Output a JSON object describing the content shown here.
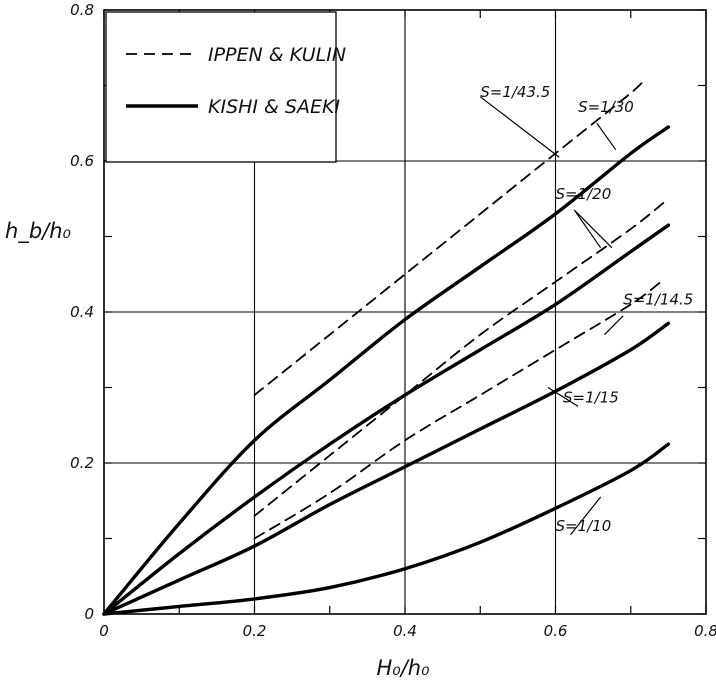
{
  "chart_data": {
    "type": "line",
    "title": "",
    "xlabel": "H₀/h₀",
    "ylabel": "h_b/h₀",
    "xlim": [
      0,
      0.8
    ],
    "ylim": [
      0,
      0.8
    ],
    "xticks": [
      "0",
      "0.2",
      "0.4",
      "0.6",
      "0.8"
    ],
    "yticks": [
      "0",
      "0.2",
      "0.4",
      "0.6",
      "0.8"
    ],
    "grid": true,
    "legend": {
      "position": "top-left",
      "entries": [
        {
          "label": "IPPEN & KULIN",
          "style": "dashed"
        },
        {
          "label": "KISHI & SAEKI",
          "style": "solid"
        }
      ]
    },
    "series": [
      {
        "source": "IPPEN & KULIN",
        "slope": "S=1/43.5",
        "style": "dashed",
        "x": [
          0.2,
          0.3,
          0.4,
          0.5,
          0.6,
          0.7,
          0.72
        ],
        "y": [
          0.29,
          0.37,
          0.45,
          0.53,
          0.61,
          0.69,
          0.71
        ]
      },
      {
        "source": "IPPEN & KULIN",
        "slope": "S=1/20",
        "style": "dashed",
        "x": [
          0.2,
          0.3,
          0.4,
          0.5,
          0.6,
          0.7,
          0.75
        ],
        "y": [
          0.13,
          0.21,
          0.29,
          0.37,
          0.44,
          0.51,
          0.55
        ]
      },
      {
        "source": "IPPEN & KULIN",
        "slope": "S=1/14.5",
        "style": "dashed",
        "x": [
          0.2,
          0.3,
          0.4,
          0.5,
          0.6,
          0.7,
          0.74
        ],
        "y": [
          0.1,
          0.16,
          0.23,
          0.29,
          0.35,
          0.41,
          0.44
        ]
      },
      {
        "source": "KISHI & SAEKI",
        "slope": "S=1/30",
        "style": "solid",
        "x": [
          0,
          0.1,
          0.2,
          0.3,
          0.4,
          0.5,
          0.6,
          0.7,
          0.75
        ],
        "y": [
          0,
          0.12,
          0.23,
          0.31,
          0.39,
          0.46,
          0.53,
          0.61,
          0.645
        ]
      },
      {
        "source": "KISHI & SAEKI",
        "slope": "S=1/20",
        "style": "solid",
        "x": [
          0,
          0.1,
          0.2,
          0.3,
          0.4,
          0.5,
          0.6,
          0.7,
          0.75
        ],
        "y": [
          0,
          0.08,
          0.155,
          0.225,
          0.29,
          0.35,
          0.41,
          0.48,
          0.515
        ]
      },
      {
        "source": "KISHI & SAEKI",
        "slope": "S=1/15",
        "style": "solid",
        "x": [
          0,
          0.1,
          0.2,
          0.3,
          0.4,
          0.5,
          0.6,
          0.7,
          0.75
        ],
        "y": [
          0,
          0.045,
          0.09,
          0.145,
          0.195,
          0.245,
          0.295,
          0.35,
          0.385
        ]
      },
      {
        "source": "KISHI & SAEKI",
        "slope": "S=1/10",
        "style": "solid",
        "x": [
          0,
          0.1,
          0.2,
          0.3,
          0.4,
          0.5,
          0.6,
          0.7,
          0.75
        ],
        "y": [
          0,
          0.01,
          0.02,
          0.035,
          0.06,
          0.095,
          0.14,
          0.19,
          0.225
        ]
      }
    ],
    "annotations": [
      {
        "text": "S=1/43.5",
        "x": 0.5,
        "y": 0.685
      },
      {
        "text": "S=1/30",
        "x": 0.63,
        "y": 0.665
      },
      {
        "text": "S=1/20",
        "x": 0.6,
        "y": 0.55
      },
      {
        "text": "S=1/14.5",
        "x": 0.69,
        "y": 0.41
      },
      {
        "text": "S=1/15",
        "x": 0.61,
        "y": 0.28
      },
      {
        "text": "S=1/10",
        "x": 0.6,
        "y": 0.11
      }
    ]
  }
}
